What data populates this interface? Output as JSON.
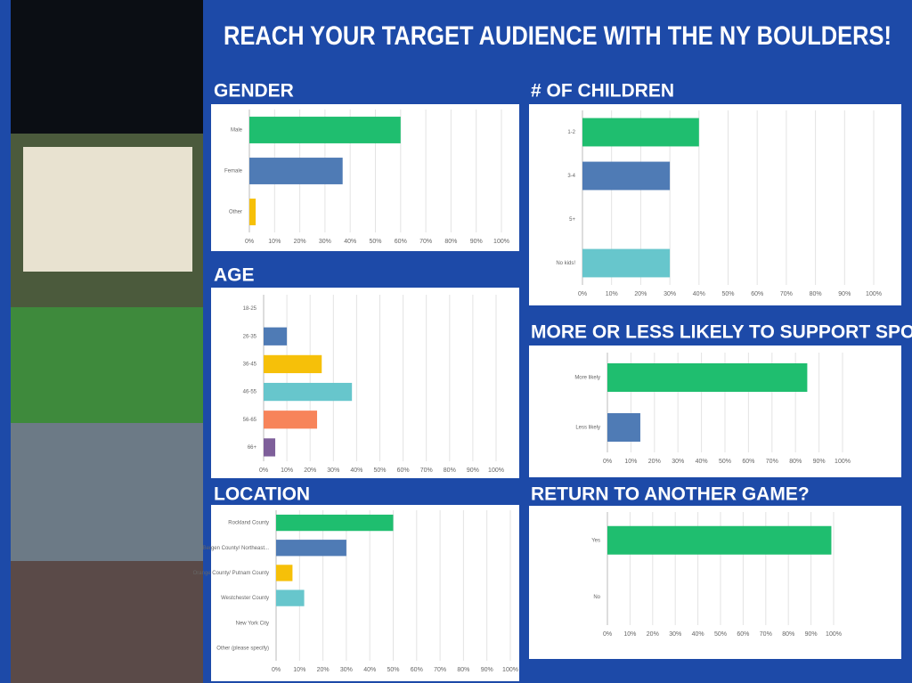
{
  "title": "REACH YOUR TARGET AUDIENCE WITH THE NY BOULDERS!",
  "chart_data": [
    {
      "type": "hbar",
      "title": "GENDER",
      "categories": [
        "Male",
        "Female",
        "Other"
      ],
      "values": [
        60,
        37,
        2.5
      ],
      "colors": [
        "#1fbe6f",
        "#4f7bb5",
        "#f6c009"
      ],
      "xlim": [
        0,
        100
      ],
      "xticks": [
        {
          "value": 0,
          "label": "0%"
        },
        {
          "value": 10,
          "label": "10%"
        },
        {
          "value": 20,
          "label": "20%"
        },
        {
          "value": 30,
          "label": "30%"
        },
        {
          "value": 40,
          "label": "40%"
        },
        {
          "value": 50,
          "label": "50%"
        },
        {
          "value": 60,
          "label": "60%"
        },
        {
          "value": 70,
          "label": "70%"
        },
        {
          "value": 80,
          "label": "80%"
        },
        {
          "value": 90,
          "label": "90%"
        },
        {
          "value": 100,
          "label": "100%"
        }
      ],
      "grid": true
    },
    {
      "type": "hbar",
      "title": "# OF CHILDREN",
      "categories": [
        "1-2",
        "3-4",
        "5+",
        "No kids!"
      ],
      "values": [
        40,
        30,
        0,
        30
      ],
      "colors": [
        "#1fbe6f",
        "#4f7bb5",
        "#f6c009",
        "#67c6cc"
      ],
      "xlim": [
        0,
        100
      ],
      "xticks": [
        {
          "value": 0,
          "label": "0%"
        },
        {
          "value": 10,
          "label": "10%"
        },
        {
          "value": 20,
          "label": "20%"
        },
        {
          "value": 30,
          "label": "30%"
        },
        {
          "value": 40,
          "label": "40%"
        },
        {
          "value": 50,
          "label": "50%"
        },
        {
          "value": 60,
          "label": "60%"
        },
        {
          "value": 70,
          "label": "70%"
        },
        {
          "value": 80,
          "label": "80%"
        },
        {
          "value": 90,
          "label": "90%"
        },
        {
          "value": 100,
          "label": "100%"
        }
      ],
      "grid": true
    },
    {
      "type": "hbar",
      "title": "AGE",
      "categories": [
        "18-25",
        "26-35",
        "36-45",
        "46-55",
        "56-65",
        "66+"
      ],
      "values": [
        0,
        10,
        25,
        38,
        23,
        5
      ],
      "colors": [
        "#1fbe6f",
        "#4f7bb5",
        "#f6c009",
        "#67c6cc",
        "#f7845a",
        "#7e5f9a"
      ],
      "xlim": [
        0,
        100
      ],
      "xticks": [
        {
          "value": 0,
          "label": "0%"
        },
        {
          "value": 10,
          "label": "10%"
        },
        {
          "value": 20,
          "label": "20%"
        },
        {
          "value": 30,
          "label": "30%"
        },
        {
          "value": 40,
          "label": "40%"
        },
        {
          "value": 50,
          "label": "50%"
        },
        {
          "value": 60,
          "label": "60%"
        },
        {
          "value": 70,
          "label": "70%"
        },
        {
          "value": 80,
          "label": "80%"
        },
        {
          "value": 90,
          "label": "90%"
        },
        {
          "value": 100,
          "label": "100%"
        }
      ],
      "grid": true
    },
    {
      "type": "hbar",
      "title": "MORE OR LESS LIKELY TO SUPPORT SPONSORS?",
      "categories": [
        "More likely",
        "Less likely"
      ],
      "values": [
        85,
        14
      ],
      "colors": [
        "#1fbe6f",
        "#4f7bb5"
      ],
      "xlim": [
        0,
        100
      ],
      "xticks": [
        {
          "value": 0,
          "label": "0%"
        },
        {
          "value": 10,
          "label": "10%"
        },
        {
          "value": 20,
          "label": "20%"
        },
        {
          "value": 30,
          "label": "30%"
        },
        {
          "value": 40,
          "label": "40%"
        },
        {
          "value": 50,
          "label": "50%"
        },
        {
          "value": 60,
          "label": "60%"
        },
        {
          "value": 70,
          "label": "70%"
        },
        {
          "value": 80,
          "label": "80%"
        },
        {
          "value": 90,
          "label": "90%"
        },
        {
          "value": 100,
          "label": "100%"
        }
      ],
      "grid": true
    },
    {
      "type": "hbar",
      "title": "LOCATION",
      "categories": [
        "Rockland County",
        "Bergen County/ Northeast...",
        "Orange County/ Putnam County",
        "Westchester County",
        "New York City",
        "Other (please specify)"
      ],
      "values": [
        50,
        30,
        7,
        12,
        0,
        0
      ],
      "colors": [
        "#1fbe6f",
        "#4f7bb5",
        "#f6c009",
        "#67c6cc",
        "#f7845a",
        "#7e5f9a"
      ],
      "xlim": [
        0,
        100
      ],
      "xticks": [
        {
          "value": 0,
          "label": "0%"
        },
        {
          "value": 10,
          "label": "10%"
        },
        {
          "value": 20,
          "label": "20%"
        },
        {
          "value": 30,
          "label": "30%"
        },
        {
          "value": 40,
          "label": "40%"
        },
        {
          "value": 50,
          "label": "50%"
        },
        {
          "value": 60,
          "label": "60%"
        },
        {
          "value": 70,
          "label": "70%"
        },
        {
          "value": 80,
          "label": "80%"
        },
        {
          "value": 90,
          "label": "90%"
        },
        {
          "value": 100,
          "label": "100%"
        }
      ],
      "grid": true
    },
    {
      "type": "hbar",
      "title": "RETURN TO ANOTHER GAME?",
      "categories": [
        "Yes",
        "No"
      ],
      "values": [
        99,
        0
      ],
      "colors": [
        "#1fbe6f",
        "#4f7bb5"
      ],
      "xlim": [
        0,
        100
      ],
      "xticks": [
        {
          "value": 0,
          "label": "0%"
        },
        {
          "value": 10,
          "label": "10%"
        },
        {
          "value": 20,
          "label": "20%"
        },
        {
          "value": 30,
          "label": "30%"
        },
        {
          "value": 40,
          "label": "40%"
        },
        {
          "value": 50,
          "label": "50%"
        },
        {
          "value": 60,
          "label": "60%"
        },
        {
          "value": 70,
          "label": "70%"
        },
        {
          "value": 80,
          "label": "80%"
        },
        {
          "value": 90,
          "label": "90%"
        },
        {
          "value": 100,
          "label": "100%"
        }
      ],
      "grid": true
    }
  ]
}
